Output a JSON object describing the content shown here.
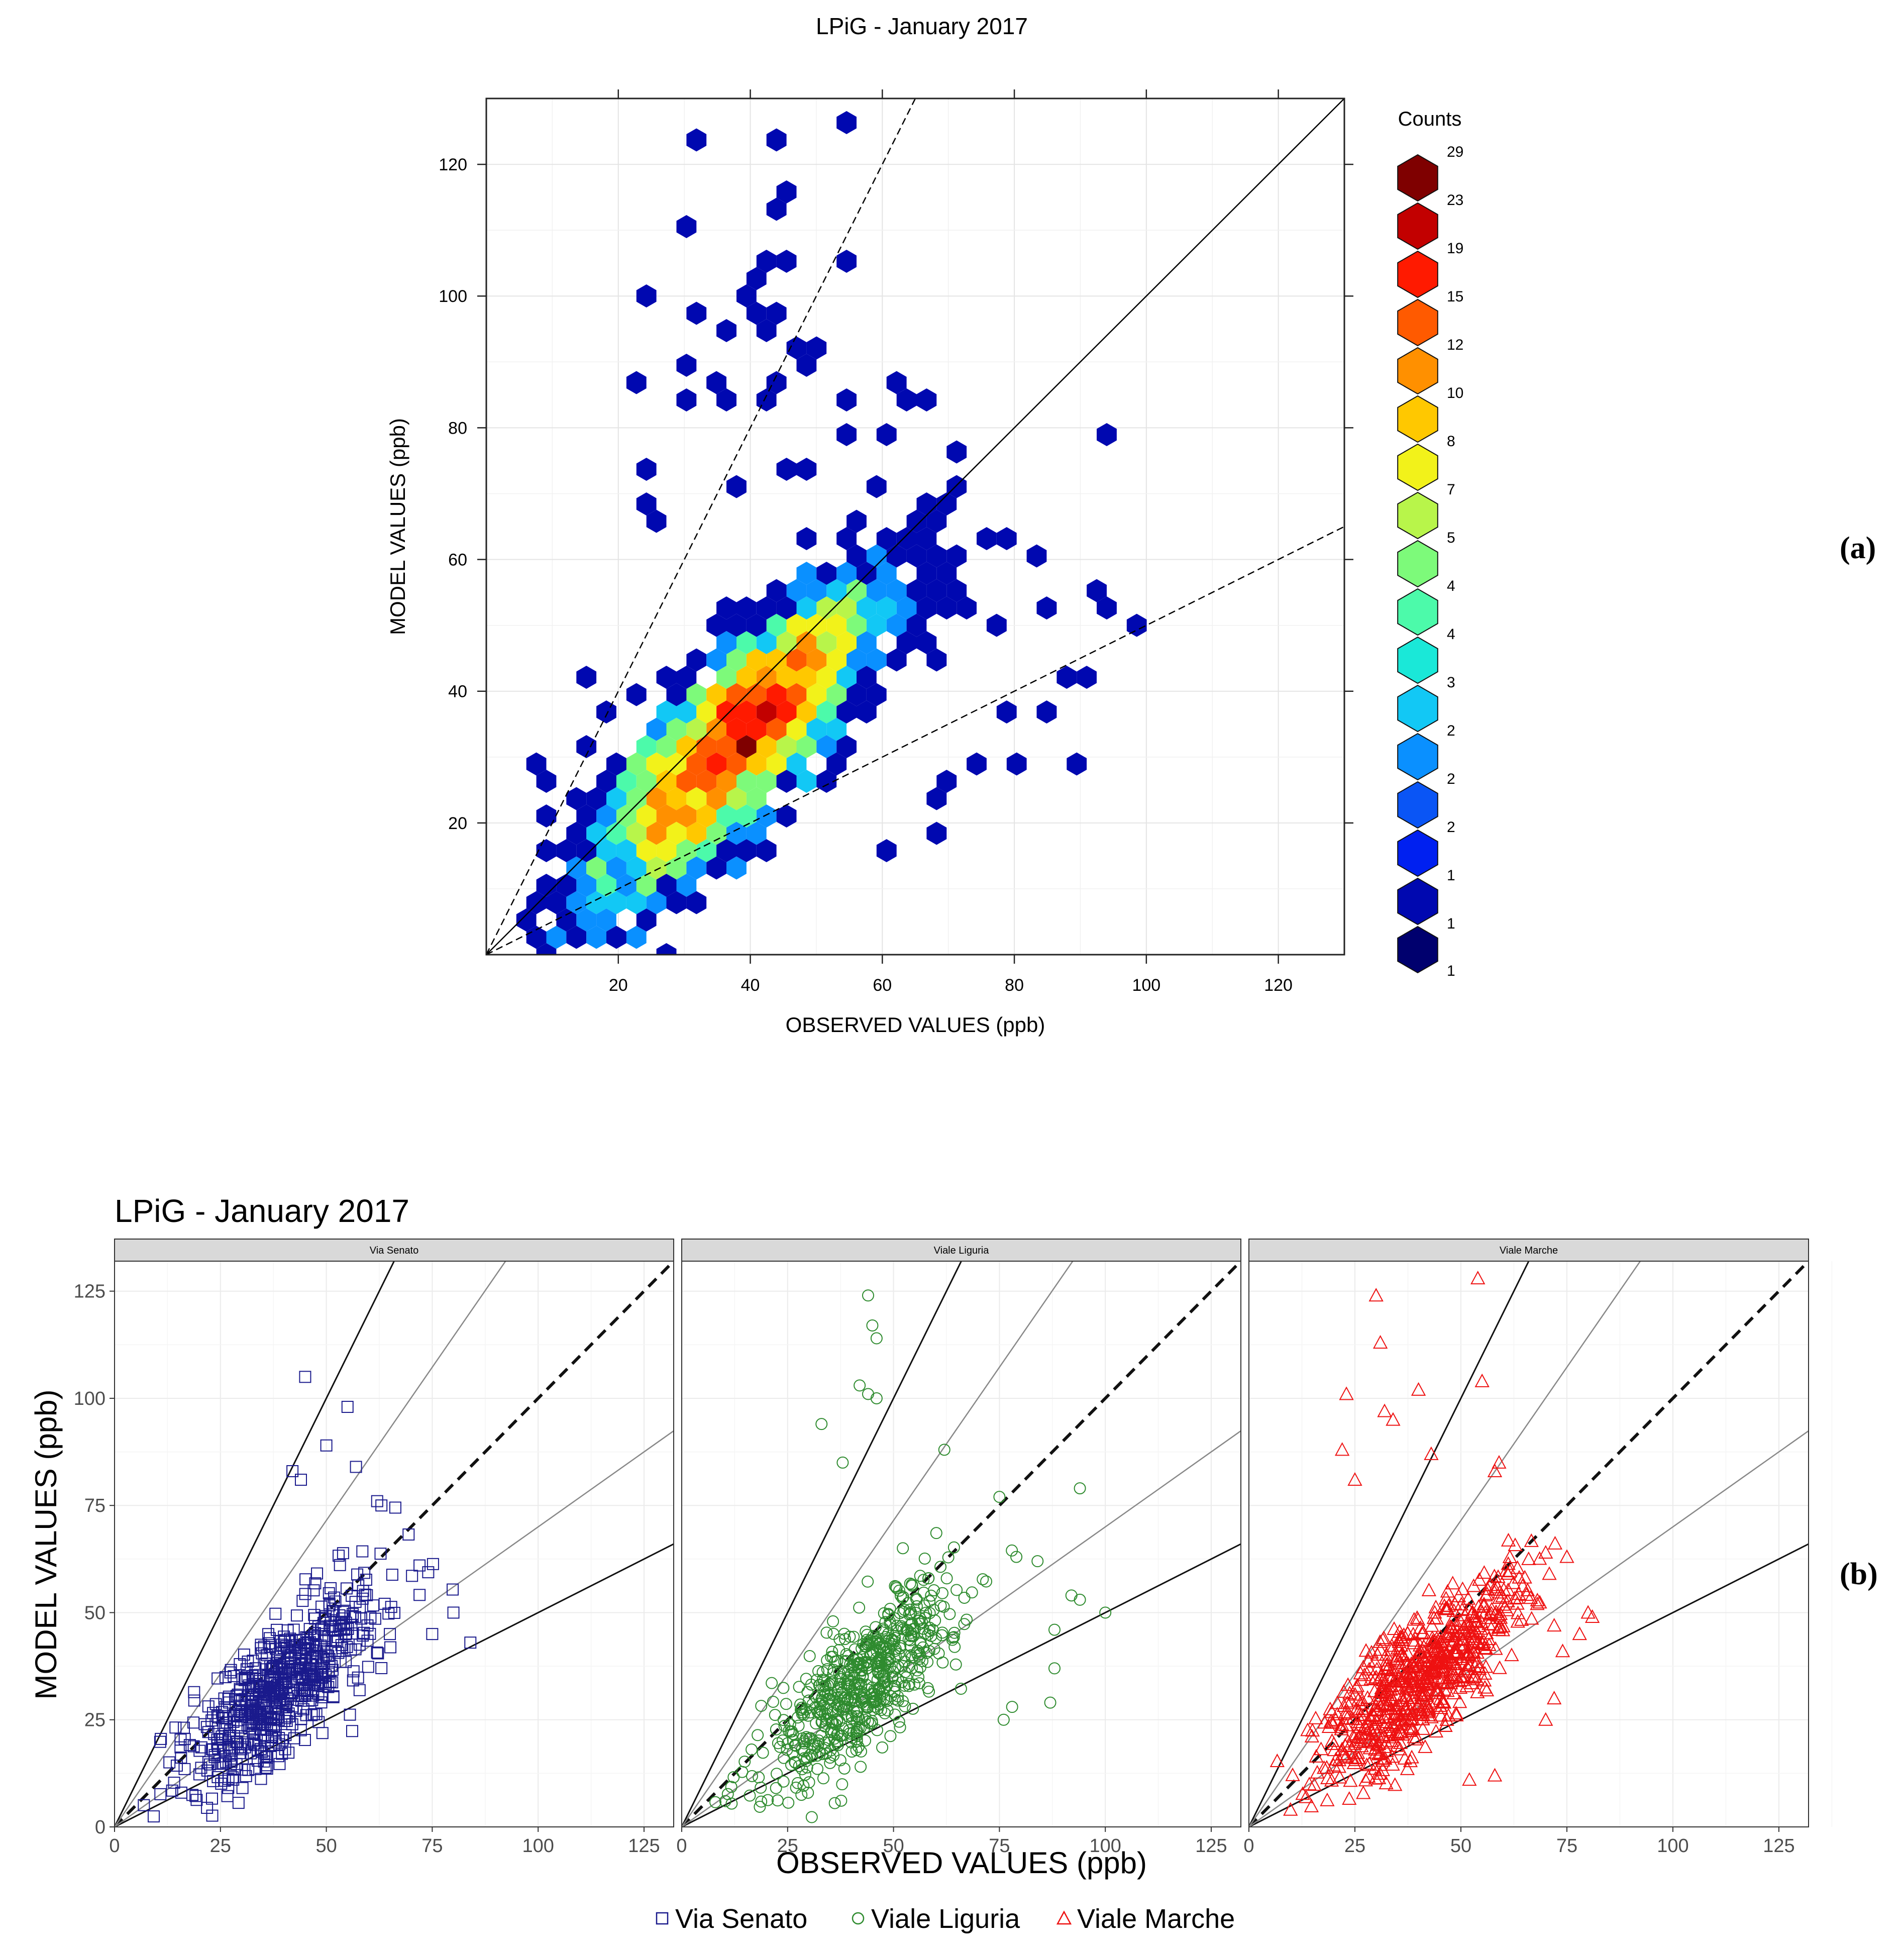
{
  "figure": {
    "label_a": "(a)",
    "label_b": "(b)"
  },
  "colors": {
    "via_senato": "#1a1a8c",
    "viale_liguria": "#2e8b2e",
    "viale_marche": "#ee1111",
    "strip_bg": "#d9d9d9",
    "grid": "#ebebeb"
  },
  "chart_data": [
    {
      "type": "hexbin",
      "title": "LPiG - January 2017",
      "xlabel": "OBSERVED VALUES (ppb)",
      "ylabel": "MODEL VALUES (ppb)",
      "xlim": [
        0,
        130
      ],
      "ylim": [
        0,
        130
      ],
      "xticks": [
        "20",
        "40",
        "60",
        "80",
        "100",
        "120"
      ],
      "yticks": [
        "20",
        "40",
        "60",
        "80",
        "100",
        "120"
      ],
      "reference_lines": [
        {
          "slope": 1,
          "style": "solid"
        },
        {
          "slope": 2,
          "style": "dashed"
        },
        {
          "slope": 0.5,
          "style": "dashed"
        }
      ],
      "legend": {
        "title": "Counts",
        "labels": [
          "29",
          "23",
          "19",
          "15",
          "12",
          "10",
          "8",
          "7",
          "5",
          "4",
          "4",
          "3",
          "2",
          "2",
          "2",
          "1",
          "1"
        ],
        "colors": [
          "#7f0000",
          "#c20000",
          "#ff1a00",
          "#ff5a00",
          "#ff9000",
          "#ffc800",
          "#f2f21a",
          "#b8f54a",
          "#7dfa7a",
          "#4cfaaa",
          "#1ae8d8",
          "#12c8f5",
          "#0a90ff",
          "#0a55f5",
          "#0020f0",
          "#0008b0",
          "#00006e"
        ]
      },
      "density_model": {
        "center": [
          38,
          33
        ],
        "peak_count": 29,
        "scatter_seed": 7
      },
      "outlier_bins": [
        [
          31,
          125
        ],
        [
          44,
          125
        ],
        [
          55,
          127
        ],
        [
          45,
          117
        ],
        [
          44,
          114
        ],
        [
          30,
          111
        ],
        [
          46,
          106
        ],
        [
          43,
          104
        ],
        [
          41,
          103
        ],
        [
          54,
          104
        ],
        [
          24,
          100
        ],
        [
          38,
          100
        ],
        [
          40,
          98
        ],
        [
          31,
          98
        ],
        [
          44,
          97
        ],
        [
          36,
          96
        ],
        [
          42,
          95
        ],
        [
          49,
          93
        ],
        [
          48,
          91
        ],
        [
          47,
          90
        ],
        [
          30,
          90
        ],
        [
          35,
          87
        ],
        [
          22,
          87
        ],
        [
          44,
          87
        ],
        [
          41,
          85
        ],
        [
          36,
          85
        ],
        [
          30,
          85
        ],
        [
          62,
          87
        ],
        [
          63,
          85
        ],
        [
          55,
          85
        ],
        [
          66,
          85
        ],
        [
          94,
          79
        ],
        [
          70,
          77
        ],
        [
          60,
          80
        ],
        [
          55,
          79
        ],
        [
          70,
          71
        ],
        [
          23,
          74
        ],
        [
          50,
          73
        ],
        [
          46,
          74
        ],
        [
          38,
          72
        ],
        [
          60,
          70
        ],
        [
          56,
          67
        ],
        [
          65,
          67
        ],
        [
          23,
          69
        ],
        [
          25,
          67
        ],
        [
          75,
          63
        ],
        [
          78,
          63
        ],
        [
          68,
          65
        ],
        [
          83,
          60
        ],
        [
          92,
          55
        ],
        [
          93,
          53
        ],
        [
          99,
          50
        ],
        [
          84,
          53
        ],
        [
          73,
          52
        ],
        [
          78,
          50
        ],
        [
          92,
          42
        ],
        [
          87,
          42
        ],
        [
          84,
          36
        ],
        [
          79,
          38
        ],
        [
          88,
          29
        ],
        [
          79,
          29
        ],
        [
          74,
          29
        ],
        [
          70,
          26
        ],
        [
          67,
          24
        ],
        [
          69,
          18
        ],
        [
          62,
          15
        ],
        [
          8,
          29
        ],
        [
          10,
          26
        ],
        [
          15,
          43
        ],
        [
          15,
          31
        ],
        [
          14,
          25
        ]
      ]
    },
    {
      "type": "faceted_scatter",
      "title": "LPiG - January 2017",
      "xlabel": "OBSERVED VALUES (ppb)",
      "ylabel": "MODEL VALUES (ppb)",
      "xlim": [
        0,
        132
      ],
      "ylim": [
        0,
        132
      ],
      "xticks": [
        "0",
        "25",
        "50",
        "75",
        "100",
        "125"
      ],
      "yticks": [
        "0",
        "25",
        "50",
        "75",
        "100",
        "125"
      ],
      "reference_lines": [
        {
          "slope": 1,
          "style": "dashed"
        },
        {
          "slope": 2,
          "style": "solid-dark"
        },
        {
          "slope": 0.5,
          "style": "solid-dark"
        },
        {
          "slope": 1.43,
          "style": "solid-grey"
        },
        {
          "slope": 0.7,
          "style": "solid-grey"
        }
      ],
      "facets": [
        {
          "name": "Via Senato",
          "marker": "square",
          "n_points": 640,
          "center": [
            40,
            33
          ],
          "seed": 11,
          "outliers": [
            [
              45,
              105
            ],
            [
              55,
              98
            ],
            [
              50,
              89
            ],
            [
              42,
              83
            ],
            [
              44,
              81
            ],
            [
              57,
              84
            ],
            [
              62,
              76
            ],
            [
              63,
              75
            ],
            [
              72,
              61
            ],
            [
              80,
              50
            ],
            [
              84,
              43
            ],
            [
              75,
              45
            ],
            [
              65,
              45
            ]
          ]
        },
        {
          "name": "Viale Liguria",
          "marker": "circle",
          "n_points": 620,
          "center": [
            42,
            32
          ],
          "seed": 23,
          "outliers": [
            [
              44,
              124
            ],
            [
              45,
              117
            ],
            [
              46,
              114
            ],
            [
              42,
              103
            ],
            [
              44,
              101
            ],
            [
              46,
              100
            ],
            [
              33,
              94
            ],
            [
              38,
              85
            ],
            [
              62,
              88
            ],
            [
              94,
              79
            ],
            [
              79,
              63
            ],
            [
              84,
              62
            ],
            [
              75,
              77
            ],
            [
              100,
              50
            ],
            [
              92,
              54
            ],
            [
              94,
              53
            ],
            [
              88,
              46
            ],
            [
              88,
              37
            ],
            [
              87,
              29
            ],
            [
              78,
              28
            ],
            [
              76,
              25
            ]
          ]
        },
        {
          "name": "Viale Marche",
          "marker": "triangle",
          "n_points": 720,
          "center": [
            40,
            35
          ],
          "seed": 37,
          "outliers": [
            [
              54,
              128
            ],
            [
              30,
              124
            ],
            [
              31,
              113
            ],
            [
              55,
              104
            ],
            [
              23,
              101
            ],
            [
              40,
              102
            ],
            [
              32,
              97
            ],
            [
              34,
              95
            ],
            [
              22,
              88
            ],
            [
              43,
              87
            ],
            [
              25,
              81
            ],
            [
              59,
              85
            ],
            [
              58,
              83
            ],
            [
              70,
              64
            ],
            [
              75,
              63
            ],
            [
              68,
              52
            ],
            [
              72,
              47
            ],
            [
              80,
              50
            ],
            [
              81,
              49
            ],
            [
              78,
              45
            ],
            [
              74,
              41
            ],
            [
              72,
              30
            ],
            [
              70,
              25
            ],
            [
              58,
              12
            ],
            [
              52,
              11
            ]
          ]
        }
      ],
      "legend": {
        "entries": [
          {
            "label": "Via Senato",
            "marker": "square"
          },
          {
            "label": "Viale Liguria",
            "marker": "circle"
          },
          {
            "label": "Viale Marche",
            "marker": "triangle"
          }
        ]
      }
    }
  ]
}
